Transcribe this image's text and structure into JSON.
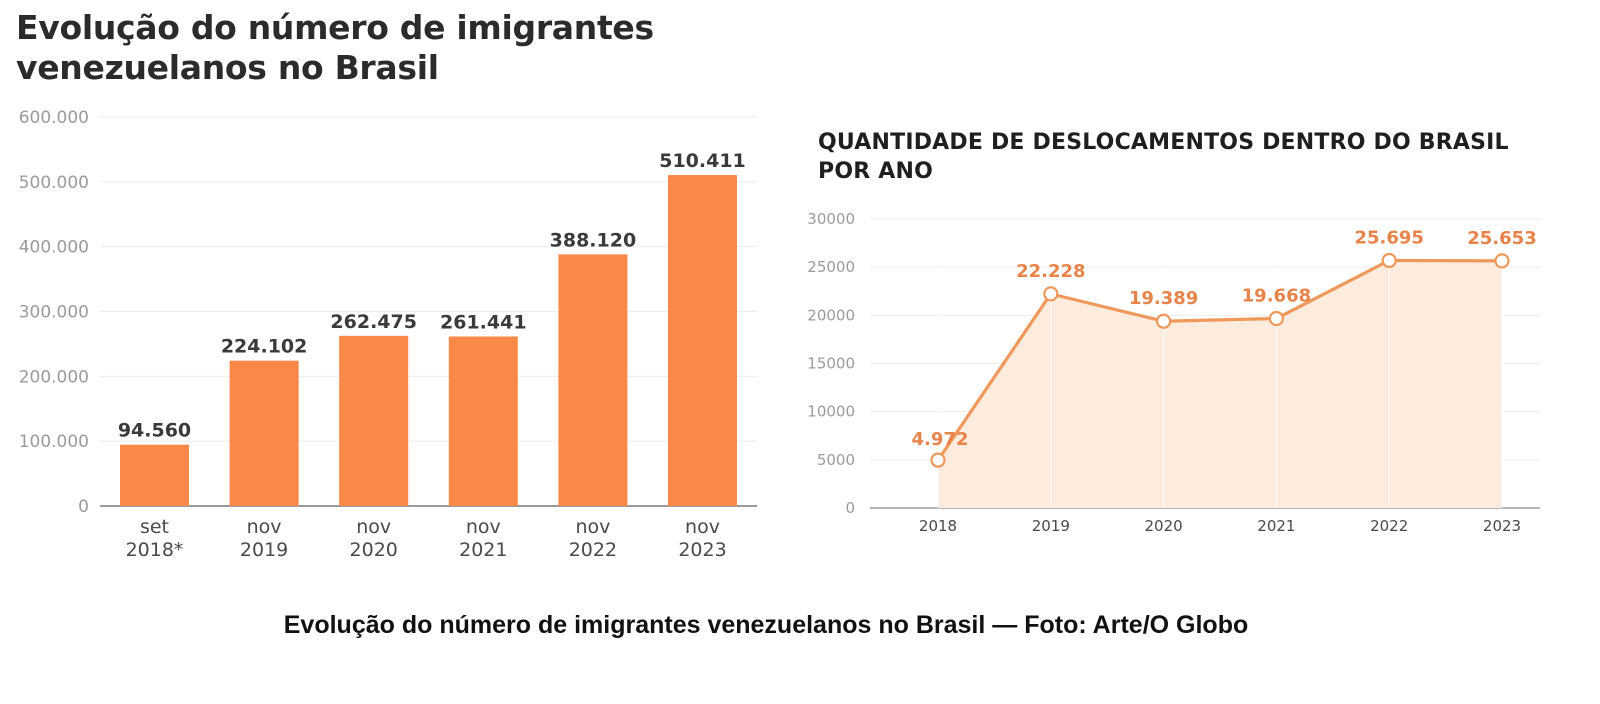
{
  "header": {
    "title_line1": "Evolução do número de imigrantes",
    "title_line2": "venezuelanos no Brasil"
  },
  "caption": "Evolução do número de imigrantes venezuelanos no Brasil — Foto: Arte/O Globo",
  "colors": {
    "bar": "#fa8848",
    "line": "#f0985a",
    "line_text": "#e8844a",
    "area": "#fdebdd",
    "text_dark": "#3a3a3a",
    "grid": "#ececec"
  },
  "chart_data": [
    {
      "type": "bar",
      "title": "",
      "categories": [
        [
          "set",
          "2018*"
        ],
        [
          "nov",
          "2019"
        ],
        [
          "nov",
          "2020"
        ],
        [
          "nov",
          "2021"
        ],
        [
          "nov",
          "2022"
        ],
        [
          "nov",
          "2023"
        ]
      ],
      "values": [
        94560,
        224102,
        262475,
        261441,
        388120,
        510411
      ],
      "value_labels": [
        "94.560",
        "224.102",
        "262.475",
        "261.441",
        "388.120",
        "510.411"
      ],
      "ylim": [
        0,
        600000
      ],
      "yticks": [
        0,
        100000,
        200000,
        300000,
        400000,
        500000,
        600000
      ],
      "ytick_labels": [
        "0",
        "100.000",
        "200.000",
        "300.000",
        "400.000",
        "500.000",
        "600.000"
      ],
      "grid": true
    },
    {
      "type": "area",
      "title_line1": "QUANTIDADE DE DESLOCAMENTOS DENTRO DO BRASIL",
      "title_line2": "POR ANO",
      "x": [
        "2018",
        "2019",
        "2020",
        "2021",
        "2022",
        "2023"
      ],
      "values": [
        4972,
        22228,
        19389,
        19668,
        25695,
        25653
      ],
      "value_labels": [
        "4.972",
        "22.228",
        "19.389",
        "19.668",
        "25.695",
        "25.653"
      ],
      "ylim": [
        0,
        30000
      ],
      "yticks": [
        0,
        5000,
        10000,
        15000,
        20000,
        25000,
        30000
      ],
      "ytick_labels": [
        "0",
        "5000",
        "10000",
        "15000",
        "20000",
        "25000",
        "30000"
      ],
      "grid": true
    }
  ]
}
